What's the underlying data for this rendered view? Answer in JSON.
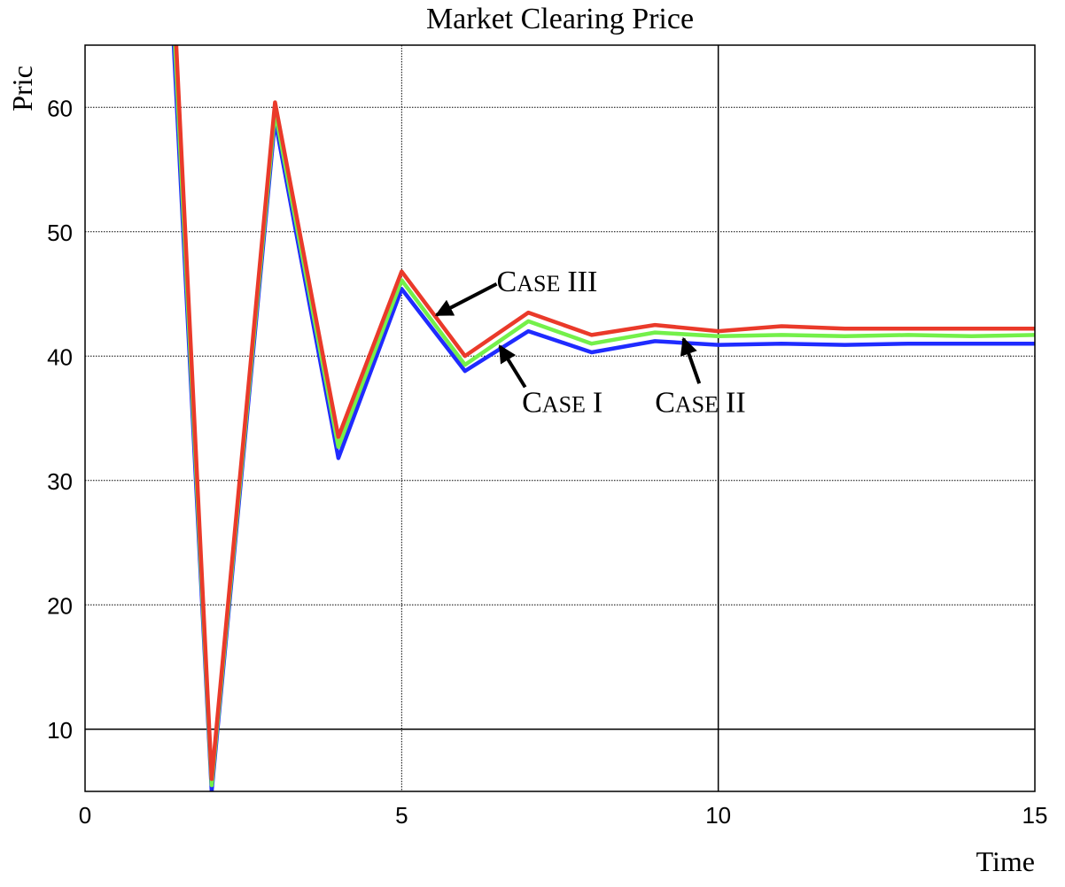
{
  "chart_data": {
    "type": "line",
    "title": "Market Clearing Price",
    "xlabel": "Time",
    "ylabel": "Pric",
    "xlim": [
      0,
      15
    ],
    "ylim": [
      5,
      65
    ],
    "xticks": [
      0,
      5,
      10,
      15
    ],
    "yticks": [
      10,
      20,
      30,
      40,
      50,
      60
    ],
    "grid": true,
    "series": [
      {
        "color": "#1f2bff",
        "x": [
          1.4,
          2,
          3,
          4,
          5,
          6,
          7,
          8,
          9,
          10,
          11,
          12,
          13,
          14,
          15
        ],
        "values": [
          65,
          5,
          59,
          31.8,
          45.4,
          38.8,
          42,
          40.3,
          41.2,
          40.9,
          41,
          40.9,
          41,
          41,
          41
        ]
      },
      {
        "color": "#74f04a",
        "x": [
          1.42,
          2,
          3,
          4,
          5,
          6,
          7,
          8,
          9,
          10,
          11,
          12,
          13,
          14,
          15
        ],
        "values": [
          65,
          5.5,
          59.7,
          32.7,
          46.1,
          39.3,
          42.8,
          41,
          41.9,
          41.6,
          41.7,
          41.6,
          41.7,
          41.6,
          41.7
        ]
      },
      {
        "color": "#ea3a2a",
        "x": [
          1.44,
          2,
          3,
          4,
          5,
          6,
          7,
          8,
          9,
          10,
          11,
          12,
          13,
          14,
          15
        ],
        "values": [
          65,
          6,
          60.4,
          33.5,
          46.8,
          40,
          43.5,
          41.7,
          42.5,
          42,
          42.4,
          42.2,
          42.2,
          42.2,
          42.2
        ]
      }
    ],
    "annotations": [
      {
        "label_cap": "C",
        "label_small": "ASE",
        "label_num": "III",
        "text_x": 6.5,
        "text_y": 45.2,
        "arrow_from": [
          6.5,
          45.8
        ],
        "arrow_to": [
          5.55,
          43.3
        ]
      },
      {
        "label_cap": "C",
        "label_small": "ASE",
        "label_num": "I",
        "text_x": 6.9,
        "text_y": 35.5,
        "arrow_from": [
          6.95,
          37.5
        ],
        "arrow_to": [
          6.55,
          40.8
        ]
      },
      {
        "label_cap": "C",
        "label_small": "ASE",
        "label_num": "II",
        "text_x": 9.0,
        "text_y": 35.5,
        "arrow_from": [
          9.7,
          37.8
        ],
        "arrow_to": [
          9.45,
          41.4
        ]
      }
    ]
  }
}
